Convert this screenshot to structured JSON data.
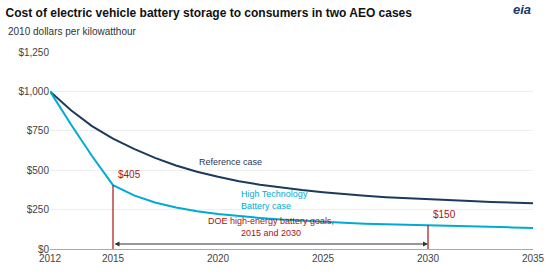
{
  "chart_data": {
    "type": "line",
    "title": "Cost of electric vehicle battery storage to consumers in two AEO cases",
    "subtitle": "2010 dollars per kilowatthour",
    "x": [
      2012,
      2013,
      2014,
      2015,
      2016,
      2017,
      2018,
      2019,
      2020,
      2021,
      2022,
      2023,
      2024,
      2025,
      2026,
      2027,
      2028,
      2029,
      2030,
      2031,
      2032,
      2033,
      2034,
      2035
    ],
    "series": [
      {
        "name": "Reference case",
        "color": "#1b3a5c",
        "values": [
          1000,
          880,
          780,
          700,
          635,
          578,
          530,
          490,
          458,
          430,
          408,
          390,
          374,
          360,
          348,
          338,
          329,
          322,
          315,
          309,
          304,
          299,
          295,
          291
        ]
      },
      {
        "name": "High Technology\nBattery case",
        "color": "#00aad4",
        "values": [
          1000,
          790,
          590,
          405,
          340,
          295,
          263,
          240,
          222,
          208,
          197,
          187,
          179,
          172,
          166,
          161,
          157,
          153,
          150,
          146,
          143,
          140,
          137,
          134
        ]
      }
    ],
    "xlim": [
      2012,
      2035
    ],
    "xticks": [
      2012,
      2015,
      2020,
      2025,
      2030,
      2035
    ],
    "ylim": [
      0,
      1250
    ],
    "yticks": [
      {
        "value": 0,
        "label": "$0"
      },
      {
        "value": 250,
        "label": "$250"
      },
      {
        "value": 500,
        "label": "$500"
      },
      {
        "value": 750,
        "label": "$750"
      },
      {
        "value": 1000,
        "label": "$1,000"
      },
      {
        "value": 1250,
        "label": "$1,250"
      }
    ],
    "grid": true,
    "annotations": [
      {
        "x": 2015,
        "y": 405,
        "label": "$405",
        "color": "#aa1111"
      },
      {
        "x": 2030,
        "y": 150,
        "label": "$150",
        "color": "#aa1111"
      }
    ],
    "annotation": "DOE high-energy battery goals,\n2015 and 2030",
    "logo": "eia"
  }
}
